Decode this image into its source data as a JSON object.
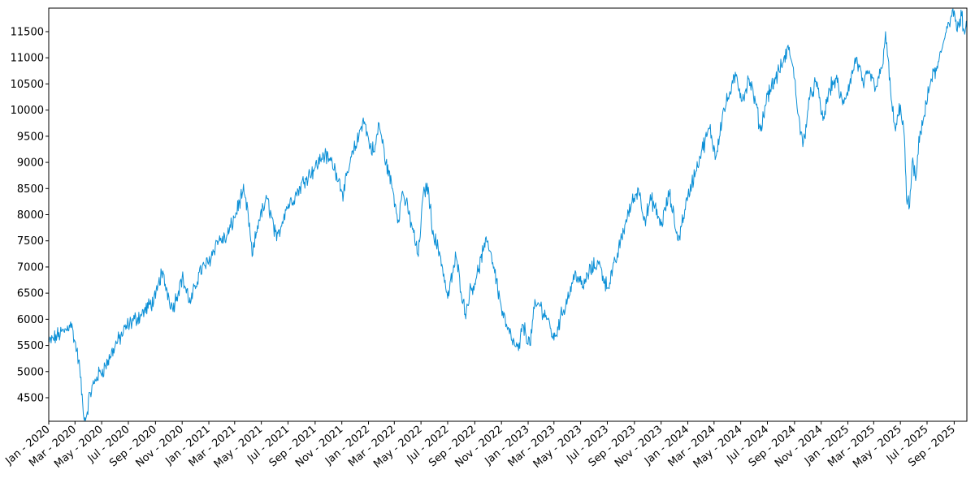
{
  "chart_data": {
    "type": "line",
    "title": "",
    "xlabel": "",
    "ylabel": "",
    "grid": false,
    "legend": "none",
    "line_color": "#0a8fd6",
    "ylim": [
      4050,
      11950
    ],
    "xlim": [
      "2020-01-01",
      "2025-09-30"
    ],
    "y_ticks": [
      4500,
      5000,
      5500,
      6000,
      6500,
      7000,
      7500,
      8000,
      8500,
      9000,
      9500,
      10000,
      10500,
      11000,
      11500
    ],
    "x_ticks": [
      {
        "date": "2020-01-01",
        "label": "Jan - 2020"
      },
      {
        "date": "2020-03-01",
        "label": "Mar - 2020"
      },
      {
        "date": "2020-05-01",
        "label": "May - 2020"
      },
      {
        "date": "2020-07-01",
        "label": "Jul - 2020"
      },
      {
        "date": "2020-09-01",
        "label": "Sep - 2020"
      },
      {
        "date": "2020-11-01",
        "label": "Nov - 2020"
      },
      {
        "date": "2021-01-01",
        "label": "Jan - 2021"
      },
      {
        "date": "2021-03-01",
        "label": "Mar - 2021"
      },
      {
        "date": "2021-05-01",
        "label": "May - 2021"
      },
      {
        "date": "2021-07-01",
        "label": "Jul - 2021"
      },
      {
        "date": "2021-09-01",
        "label": "Sep - 2021"
      },
      {
        "date": "2021-11-01",
        "label": "Nov - 2021"
      },
      {
        "date": "2022-01-01",
        "label": "Jan - 2022"
      },
      {
        "date": "2022-03-01",
        "label": "Mar - 2022"
      },
      {
        "date": "2022-05-01",
        "label": "May - 2022"
      },
      {
        "date": "2022-07-01",
        "label": "Jul - 2022"
      },
      {
        "date": "2022-09-01",
        "label": "Sep - 2022"
      },
      {
        "date": "2022-11-01",
        "label": "Nov - 2022"
      },
      {
        "date": "2023-01-01",
        "label": "Jan - 2023"
      },
      {
        "date": "2023-03-01",
        "label": "Mar - 2023"
      },
      {
        "date": "2023-05-01",
        "label": "May - 2023"
      },
      {
        "date": "2023-07-01",
        "label": "Jul - 2023"
      },
      {
        "date": "2023-09-01",
        "label": "Sep - 2023"
      },
      {
        "date": "2023-11-01",
        "label": "Nov - 2023"
      },
      {
        "date": "2024-01-01",
        "label": "Jan - 2024"
      },
      {
        "date": "2024-03-01",
        "label": "Mar - 2024"
      },
      {
        "date": "2024-05-01",
        "label": "May - 2024"
      },
      {
        "date": "2024-07-01",
        "label": "Jul - 2024"
      },
      {
        "date": "2024-09-01",
        "label": "Sep - 2024"
      },
      {
        "date": "2024-11-01",
        "label": "Nov - 2024"
      },
      {
        "date": "2025-01-01",
        "label": "Jan - 2025"
      },
      {
        "date": "2025-03-01",
        "label": "Mar - 2025"
      },
      {
        "date": "2025-05-01",
        "label": "May - 2025"
      },
      {
        "date": "2025-07-01",
        "label": "Jul - 2025"
      },
      {
        "date": "2025-09-01",
        "label": "Sep - 2025"
      }
    ],
    "series": [
      {
        "name": "",
        "points": [
          {
            "x": "2020-01-01",
            "y": 5550
          },
          {
            "x": "2020-01-20",
            "y": 5680
          },
          {
            "x": "2020-02-10",
            "y": 5800
          },
          {
            "x": "2020-02-20",
            "y": 5950
          },
          {
            "x": "2020-03-05",
            "y": 5400
          },
          {
            "x": "2020-03-12",
            "y": 5050
          },
          {
            "x": "2020-03-20",
            "y": 4200
          },
          {
            "x": "2020-03-25",
            "y": 4060
          },
          {
            "x": "2020-04-05",
            "y": 4600
          },
          {
            "x": "2020-04-20",
            "y": 4900
          },
          {
            "x": "2020-05-10",
            "y": 5100
          },
          {
            "x": "2020-06-01",
            "y": 5500
          },
          {
            "x": "2020-07-01",
            "y": 5900
          },
          {
            "x": "2020-08-01",
            "y": 6100
          },
          {
            "x": "2020-09-01",
            "y": 6400
          },
          {
            "x": "2020-09-15",
            "y": 6900
          },
          {
            "x": "2020-10-10",
            "y": 6200
          },
          {
            "x": "2020-11-01",
            "y": 6800
          },
          {
            "x": "2020-11-20",
            "y": 6300
          },
          {
            "x": "2020-12-10",
            "y": 6900
          },
          {
            "x": "2021-01-01",
            "y": 7100
          },
          {
            "x": "2021-01-20",
            "y": 7500
          },
          {
            "x": "2021-02-10",
            "y": 7550
          },
          {
            "x": "2021-03-01",
            "y": 7950
          },
          {
            "x": "2021-03-20",
            "y": 8450
          },
          {
            "x": "2021-04-01",
            "y": 8000
          },
          {
            "x": "2021-04-10",
            "y": 7200
          },
          {
            "x": "2021-04-25",
            "y": 7900
          },
          {
            "x": "2021-05-15",
            "y": 8300
          },
          {
            "x": "2021-06-05",
            "y": 7500
          },
          {
            "x": "2021-06-25",
            "y": 8100
          },
          {
            "x": "2021-07-20",
            "y": 8400
          },
          {
            "x": "2021-08-10",
            "y": 8700
          },
          {
            "x": "2021-09-01",
            "y": 8900
          },
          {
            "x": "2021-09-20",
            "y": 9150
          },
          {
            "x": "2021-10-10",
            "y": 9000
          },
          {
            "x": "2021-10-20",
            "y": 8800
          },
          {
            "x": "2021-11-05",
            "y": 8400
          },
          {
            "x": "2021-11-20",
            "y": 9000
          },
          {
            "x": "2021-12-10",
            "y": 9500
          },
          {
            "x": "2021-12-20",
            "y": 9850
          },
          {
            "x": "2022-01-05",
            "y": 9300
          },
          {
            "x": "2022-01-15",
            "y": 9200
          },
          {
            "x": "2022-01-25",
            "y": 9750
          },
          {
            "x": "2022-02-10",
            "y": 9000
          },
          {
            "x": "2022-02-25",
            "y": 8500
          },
          {
            "x": "2022-03-10",
            "y": 7900
          },
          {
            "x": "2022-03-20",
            "y": 8450
          },
          {
            "x": "2022-04-10",
            "y": 7800
          },
          {
            "x": "2022-04-25",
            "y": 7200
          },
          {
            "x": "2022-05-05",
            "y": 8300
          },
          {
            "x": "2022-05-15",
            "y": 8600
          },
          {
            "x": "2022-05-30",
            "y": 7600
          },
          {
            "x": "2022-06-15",
            "y": 7200
          },
          {
            "x": "2022-07-01",
            "y": 6400
          },
          {
            "x": "2022-07-20",
            "y": 7200
          },
          {
            "x": "2022-08-10",
            "y": 6100
          },
          {
            "x": "2022-08-20",
            "y": 6500
          },
          {
            "x": "2022-09-05",
            "y": 6800
          },
          {
            "x": "2022-09-20",
            "y": 7300
          },
          {
            "x": "2022-10-01",
            "y": 7500
          },
          {
            "x": "2022-10-15",
            "y": 7000
          },
          {
            "x": "2022-11-01",
            "y": 6200
          },
          {
            "x": "2022-11-15",
            "y": 5800
          },
          {
            "x": "2022-12-01",
            "y": 5500
          },
          {
            "x": "2022-12-10",
            "y": 5400
          },
          {
            "x": "2022-12-20",
            "y": 5900
          },
          {
            "x": "2023-01-05",
            "y": 5500
          },
          {
            "x": "2023-01-15",
            "y": 6200
          },
          {
            "x": "2023-01-25",
            "y": 6300
          },
          {
            "x": "2023-02-15",
            "y": 6000
          },
          {
            "x": "2023-03-01",
            "y": 5600
          },
          {
            "x": "2023-03-15",
            "y": 6000
          },
          {
            "x": "2023-04-01",
            "y": 6400
          },
          {
            "x": "2023-04-20",
            "y": 6900
          },
          {
            "x": "2023-05-05",
            "y": 6600
          },
          {
            "x": "2023-05-20",
            "y": 6900
          },
          {
            "x": "2023-06-10",
            "y": 7100
          },
          {
            "x": "2023-07-01",
            "y": 6600
          },
          {
            "x": "2023-07-20",
            "y": 7100
          },
          {
            "x": "2023-08-10",
            "y": 7800
          },
          {
            "x": "2023-08-25",
            "y": 8200
          },
          {
            "x": "2023-09-10",
            "y": 8500
          },
          {
            "x": "2023-09-25",
            "y": 7900
          },
          {
            "x": "2023-10-10",
            "y": 8300
          },
          {
            "x": "2023-11-01",
            "y": 7800
          },
          {
            "x": "2023-11-20",
            "y": 8400
          },
          {
            "x": "2023-12-10",
            "y": 7500
          },
          {
            "x": "2023-12-25",
            "y": 8100
          },
          {
            "x": "2024-01-10",
            "y": 8600
          },
          {
            "x": "2024-02-01",
            "y": 9200
          },
          {
            "x": "2024-02-20",
            "y": 9650
          },
          {
            "x": "2024-03-05",
            "y": 9100
          },
          {
            "x": "2024-03-20",
            "y": 9900
          },
          {
            "x": "2024-04-05",
            "y": 10300
          },
          {
            "x": "2024-04-20",
            "y": 10650
          },
          {
            "x": "2024-05-05",
            "y": 10200
          },
          {
            "x": "2024-05-20",
            "y": 10600
          },
          {
            "x": "2024-06-05",
            "y": 10100
          },
          {
            "x": "2024-06-15",
            "y": 9600
          },
          {
            "x": "2024-07-01",
            "y": 10300
          },
          {
            "x": "2024-07-20",
            "y": 10600
          },
          {
            "x": "2024-08-05",
            "y": 10900
          },
          {
            "x": "2024-08-20",
            "y": 11200
          },
          {
            "x": "2024-09-01",
            "y": 10600
          },
          {
            "x": "2024-09-10",
            "y": 9900
          },
          {
            "x": "2024-09-20",
            "y": 9300
          },
          {
            "x": "2024-10-05",
            "y": 10200
          },
          {
            "x": "2024-10-20",
            "y": 10550
          },
          {
            "x": "2024-11-05",
            "y": 9800
          },
          {
            "x": "2024-11-20",
            "y": 10400
          },
          {
            "x": "2024-12-05",
            "y": 10600
          },
          {
            "x": "2024-12-20",
            "y": 10100
          },
          {
            "x": "2025-01-05",
            "y": 10500
          },
          {
            "x": "2025-01-20",
            "y": 11000
          },
          {
            "x": "2025-02-05",
            "y": 10500
          },
          {
            "x": "2025-02-20",
            "y": 10700
          },
          {
            "x": "2025-03-05",
            "y": 10400
          },
          {
            "x": "2025-03-20",
            "y": 10800
          },
          {
            "x": "2025-03-28",
            "y": 11500
          },
          {
            "x": "2025-04-10",
            "y": 10200
          },
          {
            "x": "2025-04-20",
            "y": 9600
          },
          {
            "x": "2025-05-01",
            "y": 10100
          },
          {
            "x": "2025-05-10",
            "y": 9500
          },
          {
            "x": "2025-05-15",
            "y": 8300
          },
          {
            "x": "2025-05-22",
            "y": 8150
          },
          {
            "x": "2025-05-28",
            "y": 9000
          },
          {
            "x": "2025-06-05",
            "y": 8650
          },
          {
            "x": "2025-06-15",
            "y": 9600
          },
          {
            "x": "2025-06-25",
            "y": 9900
          },
          {
            "x": "2025-07-10",
            "y": 10600
          },
          {
            "x": "2025-07-25",
            "y": 10800
          },
          {
            "x": "2025-08-05",
            "y": 11200
          },
          {
            "x": "2025-08-15",
            "y": 11600
          },
          {
            "x": "2025-08-25",
            "y": 11800
          },
          {
            "x": "2025-09-01",
            "y": 11900
          },
          {
            "x": "2025-09-08",
            "y": 11500
          },
          {
            "x": "2025-09-18",
            "y": 11800
          },
          {
            "x": "2025-09-25",
            "y": 11450
          },
          {
            "x": "2025-09-30",
            "y": 11550
          }
        ]
      }
    ]
  }
}
